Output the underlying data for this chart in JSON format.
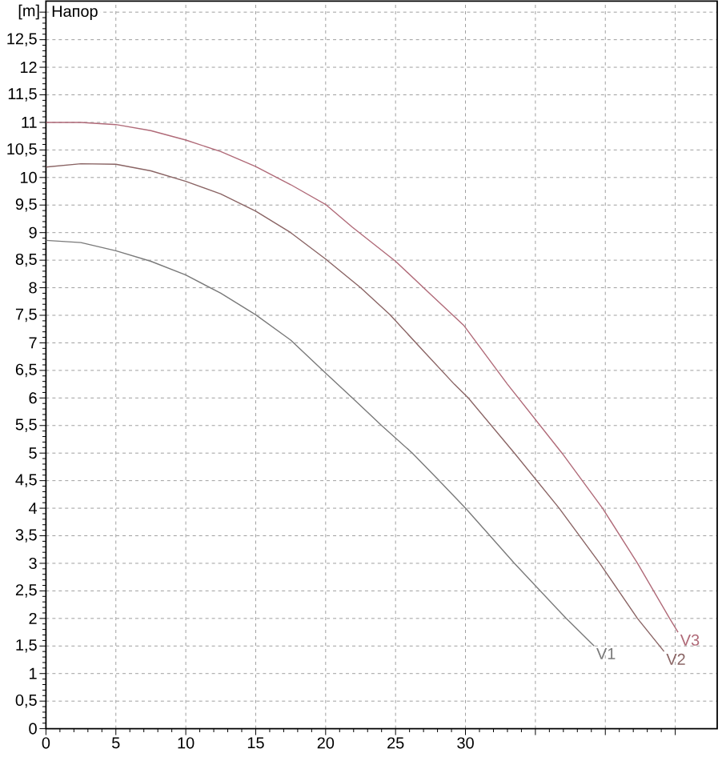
{
  "chart_data": {
    "type": "line",
    "title": "Напор",
    "ylabel": "[m]",
    "xlim": [
      0,
      48
    ],
    "ylim": [
      0,
      13.2
    ],
    "xticks": [
      0,
      5,
      10,
      15,
      20,
      25,
      30,
      {
        "value": 35,
        "label": null
      },
      {
        "value": 40,
        "label": null
      },
      {
        "value": 45,
        "label": null
      }
    ],
    "yticks": [
      0,
      {
        "value": 0.5,
        "label": "0,5"
      },
      1,
      {
        "value": 1.5,
        "label": "1,5"
      },
      2,
      {
        "value": 2.5,
        "label": "2,5"
      },
      3,
      {
        "value": 3.5,
        "label": "3,5"
      },
      4,
      {
        "value": 4.5,
        "label": "4,5"
      },
      5,
      {
        "value": 5.5,
        "label": "5,5"
      },
      6,
      {
        "value": 6.5,
        "label": "6,5"
      },
      7,
      {
        "value": 7.5,
        "label": "7,5"
      },
      8,
      {
        "value": 8.5,
        "label": "8,5"
      },
      9,
      {
        "value": 9.5,
        "label": "9,5"
      },
      10,
      {
        "value": 10.5,
        "label": "10,5"
      },
      11,
      {
        "value": 11.5,
        "label": "11,5"
      },
      12,
      {
        "value": 12.5,
        "label": "12,5"
      },
      {
        "value": 13,
        "label": null
      }
    ],
    "grid": true,
    "series": [
      {
        "name": "V1",
        "color": "#7a7a7a",
        "x": [
          0,
          2.5,
          5,
          7.5,
          10,
          12.5,
          15,
          17.5,
          20,
          22,
          24,
          26.2,
          28,
          30,
          33.5,
          37.2,
          39.2
        ],
        "values": [
          8.86,
          8.82,
          8.67,
          8.48,
          8.23,
          7.9,
          7.51,
          7.05,
          6.45,
          5.98,
          5.5,
          5.0,
          4.53,
          4.0,
          3.0,
          2.0,
          1.5
        ]
      },
      {
        "name": "V2",
        "color": "#8a6464",
        "x": [
          0,
          2.5,
          5,
          7.5,
          10,
          12.5,
          15,
          17.5,
          20,
          22.5,
          24.6,
          27,
          29.2,
          30.2,
          33.5,
          36.7,
          39.6,
          42.3,
          44.2
        ],
        "values": [
          10.19,
          10.25,
          10.24,
          10.12,
          9.93,
          9.7,
          9.39,
          9.0,
          8.52,
          8.0,
          7.51,
          6.85,
          6.25,
          6.0,
          5.0,
          4.0,
          3.0,
          2.0,
          1.4
        ]
      },
      {
        "name": "V3",
        "color": "#b06a78",
        "x": [
          0,
          2.5,
          5,
          7.5,
          10,
          12.5,
          15,
          17.5,
          20,
          21.9,
          25,
          27.5,
          29.9,
          33,
          36.9,
          39.8,
          42.3,
          44.6,
          45.2
        ],
        "values": [
          11.0,
          11.0,
          10.96,
          10.85,
          10.68,
          10.47,
          10.2,
          9.87,
          9.51,
          9.1,
          8.48,
          7.88,
          7.31,
          6.25,
          5.0,
          4.0,
          3.0,
          2.0,
          1.75
        ]
      }
    ]
  }
}
